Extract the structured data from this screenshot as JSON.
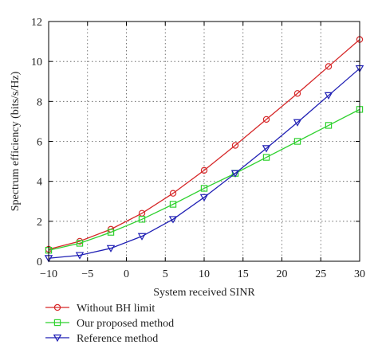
{
  "chart_data": {
    "type": "line",
    "title": "",
    "xlabel": "System received SINR",
    "ylabel": "Spectrum efficiency (bits/s/Hz)",
    "xlim": [
      -10,
      30
    ],
    "ylim": [
      0,
      12
    ],
    "xticks": [
      -10,
      -5,
      0,
      5,
      10,
      15,
      20,
      25,
      30
    ],
    "yticks": [
      0,
      2,
      4,
      6,
      8,
      10,
      12
    ],
    "grid": true,
    "grid_style": "dotted",
    "legend_position": "below-plot-left",
    "x": [
      -10,
      -6,
      -2,
      2,
      6,
      10,
      14,
      18,
      22,
      26,
      30
    ],
    "series": [
      {
        "name": "Without BH limit",
        "color": "#d62728",
        "marker": "circle",
        "values": [
          0.6,
          1.0,
          1.6,
          2.4,
          3.4,
          4.55,
          5.8,
          7.1,
          8.4,
          9.75,
          11.1
        ]
      },
      {
        "name": "Our proposed method",
        "color": "#2fd12f",
        "marker": "square",
        "values": [
          0.55,
          0.9,
          1.45,
          2.1,
          2.85,
          3.65,
          4.4,
          5.2,
          6.0,
          6.8,
          7.6
        ]
      },
      {
        "name": "Reference method",
        "color": "#1f1fb4",
        "marker": "triangle-down",
        "values": [
          0.15,
          0.3,
          0.65,
          1.25,
          2.1,
          3.2,
          4.4,
          5.65,
          6.95,
          8.3,
          9.65
        ]
      }
    ]
  }
}
